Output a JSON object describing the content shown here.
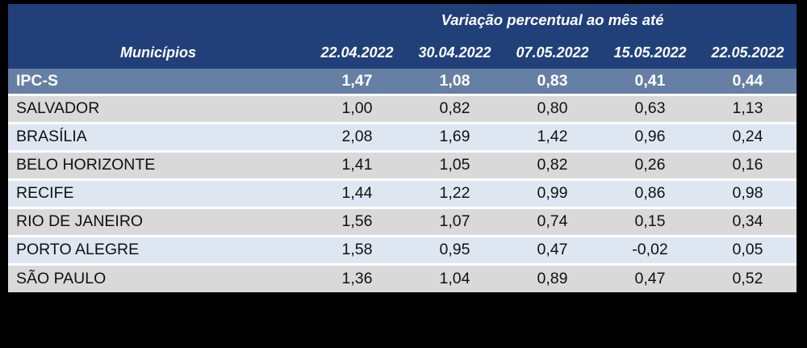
{
  "table": {
    "title": "Variação percentual ao mês até",
    "municipios_header": "Municípios",
    "date_columns": [
      "22.04.2022",
      "30.04.2022",
      "07.05.2022",
      "15.05.2022",
      "22.05.2022"
    ],
    "summary_row": {
      "label": "IPC-S",
      "values": [
        "1,47",
        "1,08",
        "0,83",
        "0,41",
        "0,44"
      ]
    },
    "rows": [
      {
        "label": "SALVADOR",
        "values": [
          "1,00",
          "0,82",
          "0,80",
          "0,63",
          "1,13"
        ]
      },
      {
        "label": "BRASÍLIA",
        "values": [
          "2,08",
          "1,69",
          "1,42",
          "0,96",
          "0,24"
        ]
      },
      {
        "label": "BELO HORIZONTE",
        "values": [
          "1,41",
          "1,05",
          "0,82",
          "0,26",
          "0,16"
        ]
      },
      {
        "label": "RECIFE",
        "values": [
          "1,44",
          "1,22",
          "0,99",
          "0,86",
          "0,98"
        ]
      },
      {
        "label": "RIO DE JANEIRO",
        "values": [
          "1,56",
          "1,07",
          "0,74",
          "0,15",
          "0,34"
        ]
      },
      {
        "label": "PORTO ALEGRE",
        "values": [
          "1,58",
          "0,95",
          "0,47",
          "-0,02",
          "0,05"
        ]
      },
      {
        "label": "SÃO PAULO",
        "values": [
          "1,36",
          "1,04",
          "0,89",
          "0,47",
          "0,52"
        ]
      }
    ]
  },
  "colors": {
    "frame": "#000000",
    "header_bg": "#21407A",
    "header_text": "#FFFFFF",
    "summary_bg": "#667FA5",
    "summary_text": "#FFFFFF",
    "row_gray": "#D9D9D9",
    "row_blue": "#DEE7F1",
    "row_separator": "#FFFFFF",
    "body_text": "#111111"
  },
  "chart_data": {
    "type": "table",
    "title": "Variação percentual ao mês até",
    "row_header": "Municípios",
    "columns": [
      "22.04.2022",
      "30.04.2022",
      "07.05.2022",
      "15.05.2022",
      "22.05.2022"
    ],
    "rows": [
      {
        "label": "IPC-S",
        "values": [
          1.47,
          1.08,
          0.83,
          0.41,
          0.44
        ]
      },
      {
        "label": "SALVADOR",
        "values": [
          1.0,
          0.82,
          0.8,
          0.63,
          1.13
        ]
      },
      {
        "label": "BRASÍLIA",
        "values": [
          2.08,
          1.69,
          1.42,
          0.96,
          0.24
        ]
      },
      {
        "label": "BELO HORIZONTE",
        "values": [
          1.41,
          1.05,
          0.82,
          0.26,
          0.16
        ]
      },
      {
        "label": "RECIFE",
        "values": [
          1.44,
          1.22,
          0.99,
          0.86,
          0.98
        ]
      },
      {
        "label": "RIO DE JANEIRO",
        "values": [
          1.56,
          1.07,
          0.74,
          0.15,
          0.34
        ]
      },
      {
        "label": "PORTO ALEGRE",
        "values": [
          1.58,
          0.95,
          0.47,
          -0.02,
          0.05
        ]
      },
      {
        "label": "SÃO PAULO",
        "values": [
          1.36,
          1.04,
          0.89,
          0.47,
          0.52
        ]
      }
    ],
    "notes": "decimal comma display; alternating gray/light-blue municipality rows; IPC-S is aggregate summary row"
  }
}
